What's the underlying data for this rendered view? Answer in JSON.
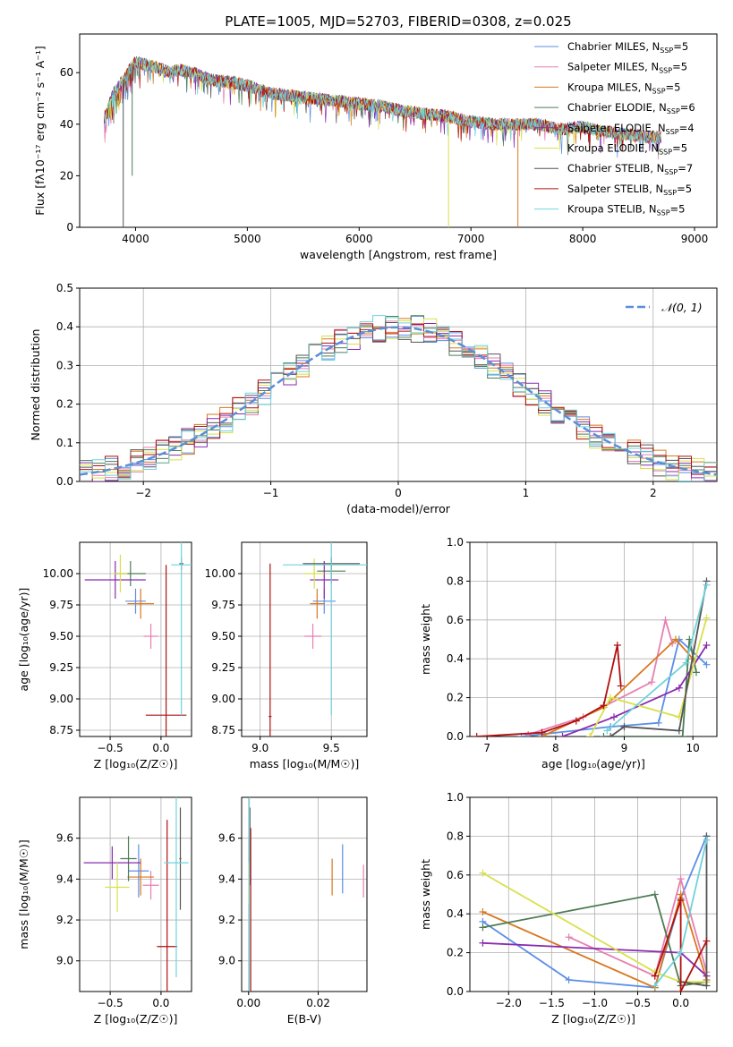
{
  "figure_title": "PLATE=1005, MJD=52703, FIBERID=0308, z=0.025",
  "legend_colors": [
    "#5b8ee6",
    "#e67fb0",
    "#d9781f",
    "#4e7d55",
    "#8a2bb0",
    "#d8e04a",
    "#555555",
    "#b01010",
    "#6fd2db"
  ],
  "chart_data": [
    {
      "type": "line",
      "title": "PLATE=1005, MJD=52703, FIBERID=0308, z=0.025",
      "xlabel": "wavelength [Angstrom, rest frame]",
      "ylabel": "Flux [fλ10⁻¹⁷ erg cm⁻² s⁻¹ A⁻¹]",
      "xlim": [
        3500,
        9200
      ],
      "ylim": [
        0,
        75
      ],
      "xticks": [
        4000,
        5000,
        6000,
        7000,
        8000,
        9000
      ],
      "yticks": [
        0,
        20,
        40,
        60
      ],
      "legend_position": "upper right",
      "legend": [
        "Chabrier MILES, N_SSP=5",
        "Salpeter MILES, N_SSP=5",
        "Kroupa MILES, N_SSP=5",
        "Chabrier ELODIE, N_SSP=6",
        "Salpeter ELODIE, N_SSP=4",
        "Kroupa ELODIE, N_SSP=5",
        "Chabrier STELIB, N_SSP=7",
        "Salpeter STELIB, N_SSP=5",
        "Kroupa STELIB, N_SSP=5"
      ],
      "legend_main": [
        "Chabrier MILES, N",
        "Salpeter MILES, N",
        "Kroupa MILES, N",
        "Chabrier ELODIE, N",
        "Salpeter ELODIE, N",
        "Kroupa ELODIE, N",
        "Chabrier STELIB, N",
        "Salpeter STELIB, N",
        "Kroupa STELIB, N"
      ],
      "legend_sub": "SSP",
      "legend_n": [
        "=5",
        "=5",
        "=5",
        "=6",
        "=4",
        "=5",
        "=7",
        "=5",
        "=5"
      ],
      "spectrum_x": [
        3720,
        3800,
        3900,
        3960,
        4000,
        4100,
        4200,
        4300,
        4400,
        4500,
        4700,
        4900,
        5000,
        5200,
        5400,
        5600,
        5800,
        6000,
        6200,
        6400,
        6600,
        6800,
        7000,
        7200,
        7400,
        7600,
        7800,
        8000,
        8200,
        8400,
        8600,
        8700
      ],
      "spectrum_y": [
        42,
        52,
        58,
        62,
        64,
        63,
        62,
        60,
        61,
        60,
        57,
        56,
        55,
        52,
        51,
        50,
        49,
        48,
        47,
        45,
        44,
        43,
        41,
        40,
        40,
        40,
        38,
        39,
        37,
        36,
        35,
        35
      ],
      "drops": [
        [
          3890,
          0
        ],
        [
          6800,
          0
        ],
        [
          7420,
          0
        ],
        [
          3970,
          20
        ]
      ]
    },
    {
      "type": "bar",
      "xlabel": "(data-model)/error",
      "ylabel": "Normed distribution",
      "xlim": [
        -2.5,
        2.5
      ],
      "ylim": [
        0,
        0.5
      ],
      "xticks": [
        -2,
        -1,
        0,
        1,
        2
      ],
      "yticks": [
        0,
        0.1,
        0.2,
        0.3,
        0.4,
        0.5
      ],
      "xtick_labels": [
        "−2",
        "−1",
        "0",
        "1",
        "2"
      ],
      "yticks_labels": [
        "0.0",
        "0.1",
        "0.2",
        "0.3",
        "0.4",
        "0.5"
      ],
      "legend": "𝒩(0, 1)",
      "legend_position": "upper right",
      "bin_width": 0.1,
      "curve": "normal pdf, mean 0, std 1"
    },
    {
      "type": "scatter",
      "xlabel": "Z [log₁₀(Z/Z☉)]",
      "ylabel": "age  [log₁₀(age/yr)]",
      "xlim": [
        -0.8,
        0.3
      ],
      "ylim": [
        8.7,
        10.25
      ],
      "xticks": [
        -0.5,
        0.0
      ],
      "xtick_labels": [
        "−0.5",
        "0.0"
      ],
      "yticks": [
        8.75,
        9.0,
        9.25,
        9.5,
        9.75,
        10.0
      ],
      "ytick_labels": [
        "8.75",
        "9.00",
        "9.25",
        "9.50",
        "9.75",
        "10.00"
      ],
      "points": [
        {
          "x": -0.25,
          "y": 9.78,
          "xerr": 0.1,
          "yerr": 0.1
        },
        {
          "x": -0.1,
          "y": 9.5,
          "xerr": 0.07,
          "yerr": 0.1
        },
        {
          "x": -0.2,
          "y": 9.76,
          "xerr": 0.13,
          "yerr": 0.12
        },
        {
          "x": -0.3,
          "y": 10.0,
          "xerr": 0.15,
          "yerr": 0.1
        },
        {
          "x": -0.45,
          "y": 9.95,
          "xerr": 0.3,
          "yerr": 0.15
        },
        {
          "x": -0.4,
          "y": 10.0,
          "xerr": 0.07,
          "yerr": 0.15
        },
        {
          "x": 0.2,
          "y": 10.08,
          "xerr": 0.02,
          "yerr": 0.05
        },
        {
          "x": 0.05,
          "y": 8.87,
          "xerr": 0.2,
          "yerr": 1.2
        },
        {
          "x": 0.2,
          "y": 10.07,
          "xerr": 0.1,
          "yerr": 1.2
        }
      ]
    },
    {
      "type": "scatter",
      "xlabel": "mass [log₁₀(M/M☉)]",
      "xlim": [
        8.87,
        9.75
      ],
      "ylim": [
        8.7,
        10.25
      ],
      "xticks": [
        9.0,
        9.5
      ],
      "xtick_labels": [
        "9.0",
        "9.5"
      ],
      "yticks": [
        8.75,
        9.0,
        9.25,
        9.5,
        9.75,
        10.0
      ],
      "ytick_labels": [
        "8.75",
        "9.00",
        "9.25",
        "9.50",
        "9.75",
        "10.00"
      ],
      "points": [
        {
          "x": 9.45,
          "y": 9.78,
          "xerr": 0.08,
          "yerr": 0.1
        },
        {
          "x": 9.37,
          "y": 9.5,
          "xerr": 0.06,
          "yerr": 0.1
        },
        {
          "x": 9.4,
          "y": 9.76,
          "xerr": 0.05,
          "yerr": 0.12
        },
        {
          "x": 9.5,
          "y": 10.02,
          "xerr": 0.1,
          "yerr": 0.1
        },
        {
          "x": 9.45,
          "y": 9.95,
          "xerr": 0.1,
          "yerr": 0.15
        },
        {
          "x": 9.38,
          "y": 10.0,
          "xerr": 0.07,
          "yerr": 0.12
        },
        {
          "x": 9.5,
          "y": 10.08,
          "xerr": 0.2,
          "yerr": 0.05
        },
        {
          "x": 9.07,
          "y": 8.86,
          "xerr": 0.01,
          "yerr": 1.22
        },
        {
          "x": 9.5,
          "y": 10.07,
          "xerr": 0.34,
          "yerr": 1.2
        }
      ]
    },
    {
      "type": "line",
      "xlabel": "age  [log₁₀(age/yr)]",
      "ylabel": "mass weight",
      "xlim": [
        6.75,
        10.35
      ],
      "ylim": [
        0,
        1.0
      ],
      "xticks": [
        7,
        8,
        9,
        10
      ],
      "xtick_labels": [
        "7",
        "8",
        "9",
        "10"
      ],
      "yticks": [
        0,
        0.2,
        0.4,
        0.6,
        0.8,
        1.0
      ],
      "ytick_labels": [
        "0.0",
        "0.2",
        "0.4",
        "0.6",
        "0.8",
        "1.0"
      ],
      "series": [
        {
          "x": [
            7.5,
            8.8,
            9.5,
            9.8,
            10.2
          ],
          "y": [
            0.0,
            0.05,
            0.07,
            0.5,
            0.37
          ]
        },
        {
          "x": [
            7.6,
            8.4,
            9.4,
            9.6,
            9.7
          ],
          "y": [
            0.01,
            0.1,
            0.28,
            0.6,
            0.48
          ]
        },
        {
          "x": [
            7.8,
            8.7,
            9.75,
            10.0
          ],
          "y": [
            0.0,
            0.15,
            0.5,
            0.4
          ]
        },
        {
          "x": [
            8.7,
            9.85,
            9.95,
            10.05
          ],
          "y": [
            0.0,
            0.0,
            0.5,
            0.33
          ]
        },
        {
          "x": [
            8.1,
            8.85,
            9.8,
            10.2
          ],
          "y": [
            0.0,
            0.1,
            0.25,
            0.47
          ]
        },
        {
          "x": [
            8.5,
            8.8,
            9.8,
            10.2
          ],
          "y": [
            0.0,
            0.2,
            0.1,
            0.61
          ]
        },
        {
          "x": [
            8.8,
            9.0,
            9.8,
            10.2
          ],
          "y": [
            0.0,
            0.05,
            0.03,
            0.8
          ]
        },
        {
          "x": [
            6.85,
            7.8,
            8.3,
            8.7,
            8.9,
            8.95
          ],
          "y": [
            0.0,
            0.02,
            0.08,
            0.16,
            0.47,
            0.26
          ]
        },
        {
          "x": [
            8.75,
            9.9,
            10.2
          ],
          "y": [
            0.03,
            0.38,
            0.78
          ]
        }
      ]
    },
    {
      "type": "scatter",
      "xlabel": "Z [log₁₀(Z/Z☉)]",
      "ylabel": "mass [log₁₀(M/M☉)]",
      "xlim": [
        -0.8,
        0.3
      ],
      "ylim": [
        8.85,
        9.8
      ],
      "xticks": [
        -0.5,
        0.0
      ],
      "xtick_labels": [
        "−0.5",
        "0.0"
      ],
      "yticks": [
        9.0,
        9.2,
        9.4,
        9.6
      ],
      "ytick_labels": [
        "9.0",
        "9.2",
        "9.4",
        "9.6"
      ],
      "points": [
        {
          "x": -0.22,
          "y": 9.44,
          "xerr": 0.1,
          "yerr": 0.13
        },
        {
          "x": -0.1,
          "y": 9.37,
          "xerr": 0.08,
          "yerr": 0.07
        },
        {
          "x": -0.2,
          "y": 9.41,
          "xerr": 0.13,
          "yerr": 0.09
        },
        {
          "x": -0.32,
          "y": 9.5,
          "xerr": 0.08,
          "yerr": 0.11
        },
        {
          "x": -0.48,
          "y": 9.48,
          "xerr": 0.28,
          "yerr": 0.08
        },
        {
          "x": -0.43,
          "y": 9.36,
          "xerr": 0.12,
          "yerr": 0.12
        },
        {
          "x": 0.19,
          "y": 9.5,
          "xerr": 0.01,
          "yerr": 0.25
        },
        {
          "x": 0.06,
          "y": 9.07,
          "xerr": 0.1,
          "yerr": 0.62
        },
        {
          "x": 0.15,
          "y": 9.48,
          "xerr": 0.12,
          "yerr": 0.56
        }
      ]
    },
    {
      "type": "scatter",
      "xlabel": "E(B-V)",
      "xlim": [
        -0.002,
        0.034
      ],
      "ylim": [
        8.85,
        9.8
      ],
      "xticks": [
        0.0,
        0.02
      ],
      "xtick_labels": [
        "0.00",
        "0.02"
      ],
      "yticks": [
        9.0,
        9.2,
        9.4,
        9.6
      ],
      "ytick_labels": [
        "9.0",
        "9.2",
        "9.4",
        "9.6"
      ],
      "points": [
        {
          "x": 0.027,
          "y": 9.45,
          "yerr": 0.12
        },
        {
          "x": 0.033,
          "y": 9.39,
          "yerr": 0.08
        },
        {
          "x": 0.024,
          "y": 9.41,
          "yerr": 0.09
        },
        {
          "x": 0.0002,
          "y": 9.5,
          "yerr": 0.11
        },
        {
          "x": 0.0003,
          "y": 9.45,
          "yerr": 0.08
        },
        {
          "x": 0.0001,
          "y": 9.38,
          "yerr": 0.1
        },
        {
          "x": 0.0004,
          "y": 9.6,
          "yerr": 0.15
        },
        {
          "x": 0.0006,
          "y": 9.25,
          "yerr": 0.4
        },
        {
          "x": 0.0002,
          "y": 9.3,
          "yerr": 0.5
        }
      ]
    },
    {
      "type": "line",
      "xlabel": "Z [log₁₀(Z/Z☉)]",
      "ylabel": "mass weight",
      "xlim": [
        -2.45,
        0.42
      ],
      "ylim": [
        0,
        1.0
      ],
      "xticks": [
        -2.0,
        -1.5,
        -1.0,
        -0.5,
        0.0
      ],
      "xtick_labels": [
        "−2.0",
        "−1.5",
        "−1.0",
        "−0.5",
        "0.0"
      ],
      "yticks": [
        0,
        0.2,
        0.4,
        0.6,
        0.8,
        1.0
      ],
      "ytick_labels": [
        "0.0",
        "0.2",
        "0.4",
        "0.6",
        "0.8",
        "1.0"
      ],
      "series": [
        {
          "x": [
            -2.3,
            -1.3,
            -0.3,
            0.0,
            0.3
          ],
          "y": [
            0.36,
            0.06,
            0.02,
            0.48,
            0.8
          ]
        },
        {
          "x": [
            -1.3,
            -0.3,
            0.0,
            0.3
          ],
          "y": [
            0.28,
            0.08,
            0.58,
            0.1
          ]
        },
        {
          "x": [
            -2.3,
            -0.3,
            0.0,
            0.3
          ],
          "y": [
            0.41,
            0.02,
            0.5,
            0.06
          ]
        },
        {
          "x": [
            -2.3,
            -0.3,
            0.0,
            0.3
          ],
          "y": [
            0.33,
            0.5,
            0.03,
            0.05
          ]
        },
        {
          "x": [
            -2.3,
            0.0,
            0.3
          ],
          "y": [
            0.25,
            0.2,
            0.08
          ]
        },
        {
          "x": [
            -2.3,
            -0.3,
            0.0,
            0.3
          ],
          "y": [
            0.61,
            0.1,
            0.05,
            0.05
          ]
        },
        {
          "x": [
            0.0,
            0.3,
            0.3
          ],
          "y": [
            0.05,
            0.03,
            0.8
          ]
        },
        {
          "x": [
            -0.3,
            0.0,
            0.0,
            0.3
          ],
          "y": [
            0.08,
            0.47,
            0.0,
            0.26
          ]
        },
        {
          "x": [
            -0.3,
            0.0,
            0.3
          ],
          "y": [
            0.03,
            0.2,
            0.78
          ]
        }
      ]
    }
  ]
}
